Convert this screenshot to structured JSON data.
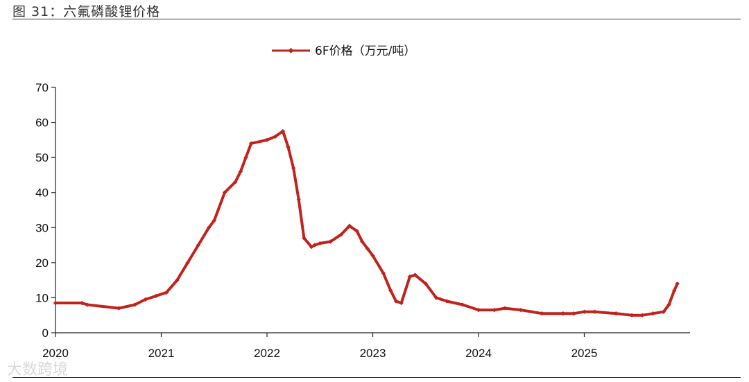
{
  "figure_title": "图 31：六氟磷酸锂价格",
  "watermark": "大数跨境",
  "chart_data": {
    "type": "line",
    "title": "",
    "xlabel": "",
    "ylabel": "",
    "ylim": [
      0,
      70
    ],
    "yticks": [
      0,
      10,
      20,
      30,
      40,
      50,
      60,
      70
    ],
    "xlim": [
      2020.0,
      2025.9
    ],
    "xticks": [
      "2020",
      "2021",
      "2022",
      "2023",
      "2024",
      "2025"
    ],
    "legend_position": "top-center",
    "grid": false,
    "series": [
      {
        "name": "6F价格（万元/吨）",
        "color": "#c0221c",
        "x": [
          2020.0,
          2020.25,
          2020.3,
          2020.6,
          2020.75,
          2020.85,
          2020.95,
          2021.05,
          2021.15,
          2021.25,
          2021.35,
          2021.45,
          2021.5,
          2021.6,
          2021.7,
          2021.75,
          2021.8,
          2021.85,
          2022.0,
          2022.08,
          2022.15,
          2022.2,
          2022.25,
          2022.3,
          2022.35,
          2022.42,
          2022.45,
          2022.5,
          2022.6,
          2022.7,
          2022.78,
          2022.85,
          2022.9,
          2022.95,
          2023.0,
          2023.1,
          2023.17,
          2023.22,
          2023.27,
          2023.35,
          2023.4,
          2023.5,
          2023.6,
          2023.7,
          2023.85,
          2024.0,
          2024.15,
          2024.25,
          2024.4,
          2024.6,
          2024.8,
          2024.9,
          2025.0,
          2025.1,
          2025.3,
          2025.45,
          2025.55,
          2025.65,
          2025.75,
          2025.8,
          2025.85,
          2025.88
        ],
        "y": [
          8.5,
          8.5,
          8,
          7,
          8,
          9.5,
          10.5,
          11.5,
          15,
          20,
          25,
          30,
          32,
          40,
          43,
          46,
          50,
          54,
          55,
          56,
          57.5,
          53,
          47,
          38,
          27,
          24.5,
          25,
          25.5,
          26,
          28,
          30.5,
          29,
          26,
          24,
          22,
          17,
          12,
          9,
          8.5,
          16,
          16.5,
          14,
          10,
          9,
          8,
          6.5,
          6.5,
          7,
          6.5,
          5.5,
          5.5,
          5.5,
          6,
          6,
          5.5,
          5,
          5,
          5.5,
          6,
          8,
          12,
          14
        ]
      }
    ]
  }
}
